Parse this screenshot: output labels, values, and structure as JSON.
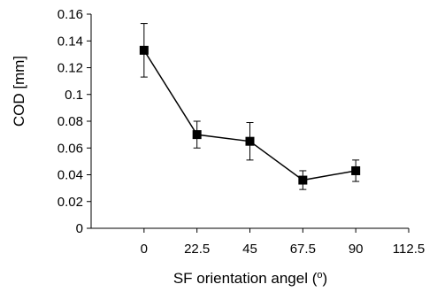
{
  "chart_data": {
    "type": "line",
    "title": "",
    "xlabel": "SF orientation angel (",
    "xlabel_unit": "o",
    "xlabel_close": ")",
    "ylabel": "COD [mm]",
    "xlim": [
      -22.5,
      112.5
    ],
    "ylim": [
      0,
      0.16
    ],
    "x_ticks": [
      "0",
      "22.5",
      "45",
      "67.5",
      "90",
      "112.5"
    ],
    "x_tick_values": [
      0,
      22.5,
      45,
      67.5,
      90,
      112.5
    ],
    "y_ticks": [
      "0",
      "0.02",
      "0.04",
      "0.06",
      "0.08",
      "0.1",
      "0.12",
      "0.14",
      "0.16"
    ],
    "y_tick_values": [
      0,
      0.02,
      0.04,
      0.06,
      0.08,
      0.1,
      0.12,
      0.14,
      0.16
    ],
    "grid": false,
    "series": [
      {
        "x": [
          0,
          22.5,
          45,
          67.5,
          90
        ],
        "y": [
          0.133,
          0.07,
          0.065,
          0.036,
          0.043
        ],
        "error": [
          0.02,
          0.01,
          0.014,
          0.007,
          0.008
        ]
      }
    ],
    "marker": "square",
    "color": "#000000"
  }
}
